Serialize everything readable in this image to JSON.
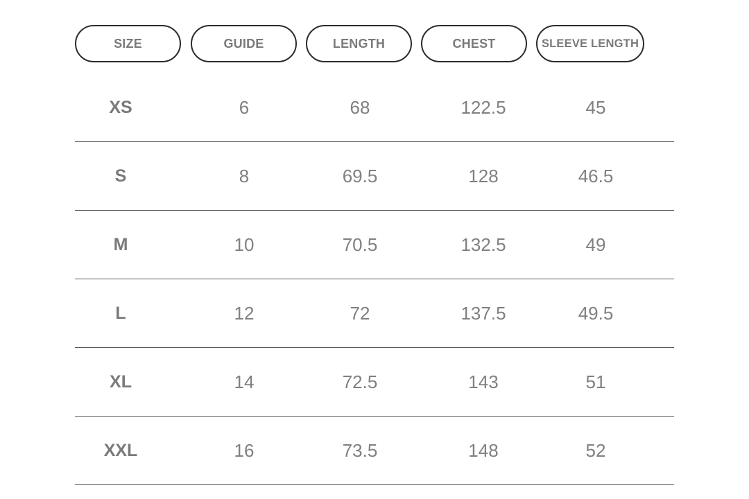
{
  "headers": [
    "SIZE",
    "GUIDE",
    "LENGTH",
    "CHEST",
    "SLEEVE LENGTH"
  ],
  "rows": [
    {
      "size": "XS",
      "guide": "6",
      "length": "68",
      "chest": "122.5",
      "sleeve": "45"
    },
    {
      "size": "S",
      "guide": "8",
      "length": "69.5",
      "chest": "128",
      "sleeve": "46.5"
    },
    {
      "size": "M",
      "guide": "10",
      "length": "70.5",
      "chest": "132.5",
      "sleeve": "49"
    },
    {
      "size": "L",
      "guide": "12",
      "length": "72",
      "chest": "137.5",
      "sleeve": "49.5"
    },
    {
      "size": "XL",
      "guide": "14",
      "length": "72.5",
      "chest": "143",
      "sleeve": "51"
    },
    {
      "size": "XXL",
      "guide": "16",
      "length": "73.5",
      "chest": "148",
      "sleeve": "52"
    }
  ],
  "colors": {
    "border": "#2b2b2b",
    "text": "#808080",
    "rule": "#555555"
  }
}
